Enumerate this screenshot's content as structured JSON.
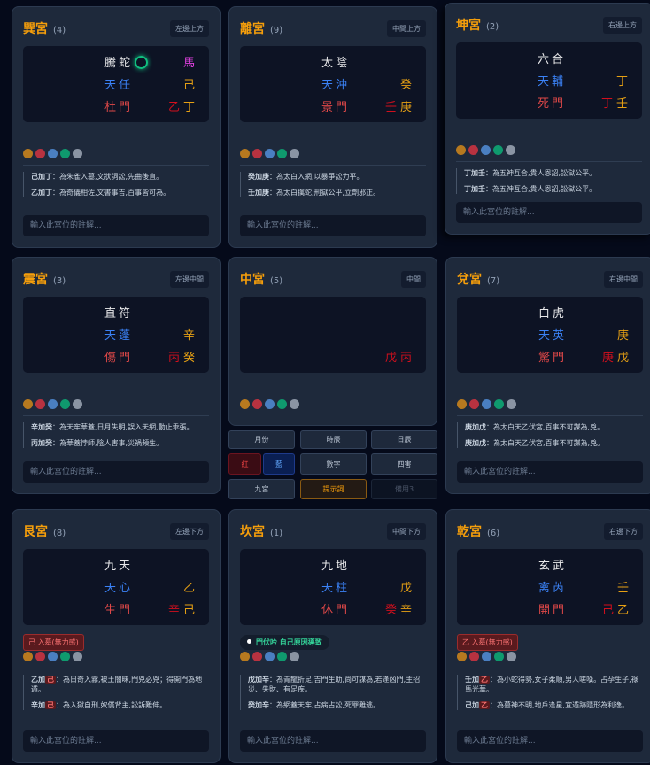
{
  "placeholder": "輸入此宮位的註解...",
  "dot_colors": [
    "#b7791f",
    "#b83240",
    "#4a7fc1",
    "#0f9a6e",
    "#8a94a3"
  ],
  "palaces": [
    {
      "name": "巽宮",
      "num": "(4)",
      "pos": "左邊上方",
      "deity": "騰蛇",
      "ring": true,
      "star": "天任",
      "gate": "杜門",
      "top_right": "馬",
      "mid_right": "己",
      "stem_l": "乙",
      "stem_r": "丁",
      "notes": [
        [
          "己加丁",
          "",
          "：為朱雀入墓,文狀詞訟,先曲後直。"
        ],
        [
          "乙加丁",
          "",
          "：為奇儀相佐,文書事吉,百事皆可為。"
        ]
      ]
    },
    {
      "name": "離宮",
      "num": "(9)",
      "pos": "中間上方",
      "deity": "太陰",
      "star": "天沖",
      "gate": "景門",
      "mid_right": "癸",
      "stem_l": "壬",
      "stem_r": "庚",
      "notes": [
        [
          "癸加庚",
          "",
          "：為太白入網,以暴爭訟力平。"
        ],
        [
          "壬加庚",
          "",
          "：為太白擒蛇,刑獄公平,立劑邪正。"
        ]
      ]
    },
    {
      "name": "坤宮",
      "num": "(2)",
      "pos": "右邊上方",
      "deity": "六合",
      "star": "天輔",
      "gate": "死門",
      "mid_right": "丁",
      "stem_l": "丁",
      "stem_r": "壬",
      "notes": [
        [
          "丁加壬",
          "",
          "：為五神互合,貴人恩詔,訟獄公平。"
        ],
        [
          "丁加壬",
          "",
          "：為五神互合,貴人恩詔,訟獄公平。"
        ]
      ]
    },
    {
      "name": "震宮",
      "num": "(3)",
      "pos": "左邊中間",
      "deity": "直符",
      "star": "天蓬",
      "gate": "傷門",
      "mid_right": "辛",
      "stem_l": "丙",
      "stem_r": "癸",
      "notes": [
        [
          "辛加癸",
          "",
          "：為天牢華蓋,日月失明,誤入天網,動止乖張。"
        ],
        [
          "丙加癸",
          "",
          "：為華蓋悖師,陰人害事,災禍頻生。"
        ]
      ]
    },
    {
      "name": "中宮",
      "num": "(5)",
      "pos": "中間",
      "stem_l": "戊",
      "stem_r": "丙"
    },
    {
      "name": "兌宮",
      "num": "(7)",
      "pos": "右邊中間",
      "deity": "白虎",
      "star": "天英",
      "gate": "驚門",
      "mid_right": "庚",
      "stem_l": "庚",
      "stem_r": "戊",
      "notes": [
        [
          "庚加戊",
          "",
          "：為太白天乙伏宮,百事不可謀為,兇。"
        ],
        [
          "庚加戊",
          "",
          "：為太白天乙伏宮,百事不可謀為,兇。"
        ]
      ]
    },
    {
      "name": "艮宮",
      "num": "(8)",
      "pos": "左邊下方",
      "deity": "九天",
      "star": "天心",
      "gate": "生門",
      "mid_right": "乙",
      "stem_l": "辛",
      "stem_r": "己",
      "badge": "己 入墓(無力感)",
      "notes": [
        [
          "乙加",
          "己",
          "：為日奇入霧,被土闇昧,門兇必兇；得開門為地遁。"
        ],
        [
          "辛加",
          "己",
          "：為入獄自刑,奴僕背主,訟訴難伸。"
        ]
      ]
    },
    {
      "name": "坎宮",
      "num": "(1)",
      "pos": "中間下方",
      "deity": "九地",
      "star": "天柱",
      "gate": "休門",
      "mid_right": "戊",
      "stem_l": "癸",
      "stem_r": "辛",
      "status": "門伏吟 自己原因導致",
      "notes": [
        [
          "戊加辛",
          "",
          "：為青龍折足,吉門生助,尚可謀為,若逢凶門,主招災、失財、有足疾。"
        ],
        [
          "癸加辛",
          "",
          "：為網蓋天牢,占病占訟,死罪難逃。"
        ]
      ]
    },
    {
      "name": "乾宮",
      "num": "(6)",
      "pos": "右邊下方",
      "deity": "玄武",
      "star": "禽芮",
      "gate": "開門",
      "mid_right": "壬",
      "stem_l": "己",
      "stem_r": "乙",
      "badge": "乙 入墓(無力感)",
      "notes": [
        [
          "壬加",
          "乙",
          "：為小蛇得勢,女子柔順,男人嗟嘆。占孕生子,祿馬光華。"
        ],
        [
          "己加",
          "乙",
          "：為墓神不明,地戶逢星,宜遁跡隱形為利逸。"
        ]
      ]
    }
  ],
  "buttons": {
    "month": "月份",
    "hour": "時辰",
    "day": "日辰",
    "red": "紅",
    "blue": "藍",
    "number": "數字",
    "four_harms": "四害",
    "nine_palaces": "九宮",
    "prompt": "提示詞",
    "spare3": "備用3"
  }
}
